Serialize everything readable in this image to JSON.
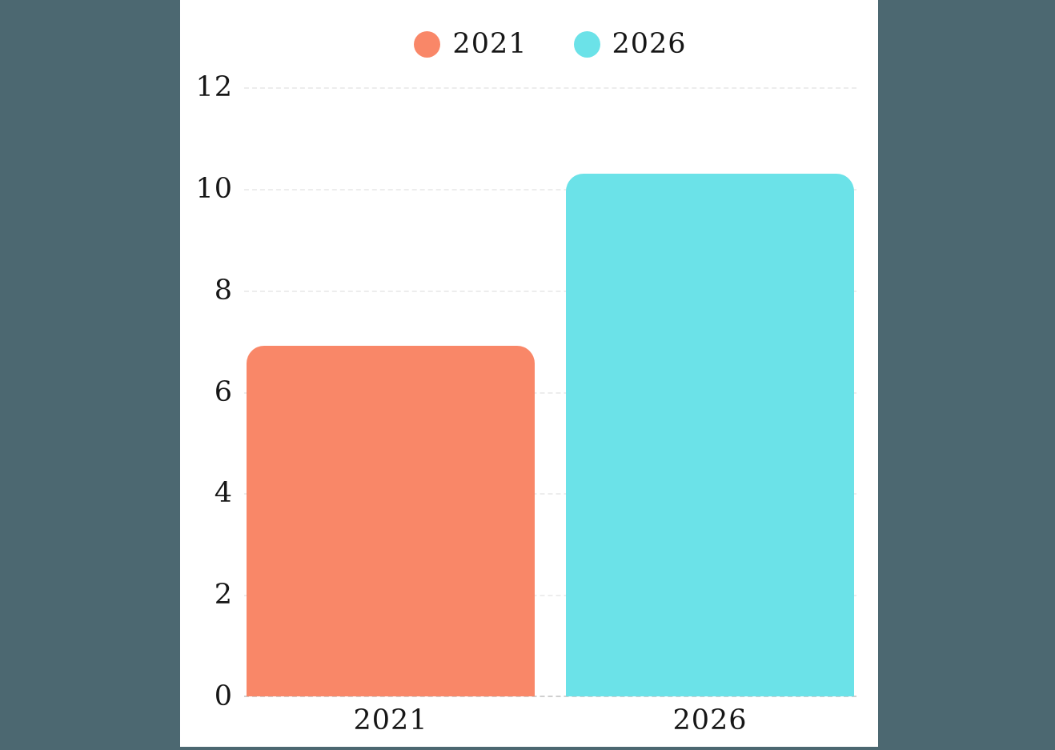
{
  "page": {
    "background_color": "#4c6871",
    "panel_color": "#ffffff"
  },
  "chart_data": {
    "type": "bar",
    "title": "",
    "xlabel": "",
    "ylabel": "",
    "categories": [
      "2021",
      "2026"
    ],
    "values": [
      6.9,
      10.3
    ],
    "bar_colors": [
      "#f98768",
      "#6be2e8"
    ],
    "legend": [
      {
        "label": "2021",
        "color": "#f98768"
      },
      {
        "label": "2026",
        "color": "#6be2e8"
      }
    ],
    "legend_position": "top-center",
    "ylim": [
      0,
      12
    ],
    "yticks": [
      0,
      2,
      4,
      6,
      8,
      10,
      12
    ],
    "grid": true,
    "gridline_color": "#ededed",
    "axis_line_color": "#cfcfcf",
    "text_color": "#161616"
  }
}
